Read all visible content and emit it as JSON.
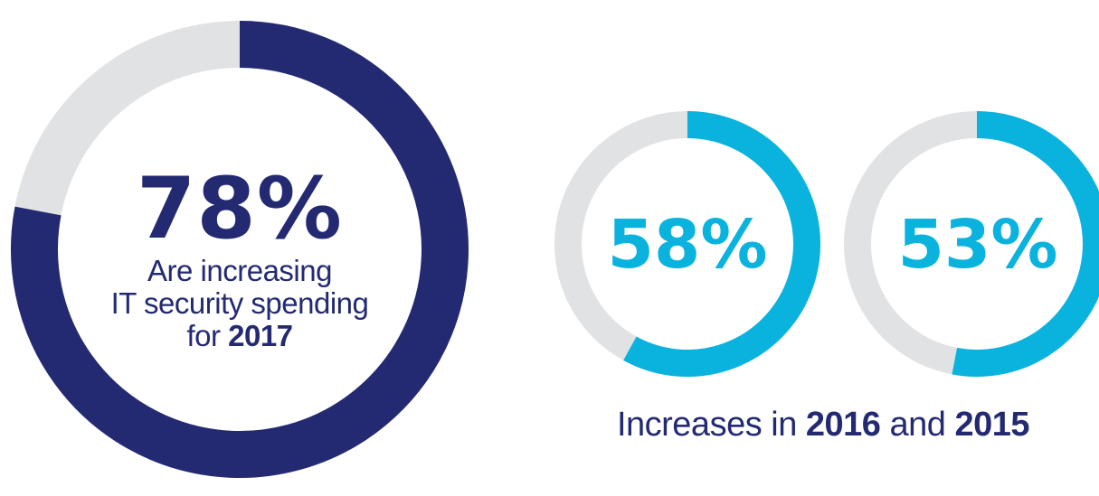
{
  "chart_data": [
    {
      "type": "pie",
      "variant": "donut",
      "value": 78,
      "value_label": "78%",
      "description_lines": [
        "Are increasing",
        "IT security spending"
      ],
      "description_for": "for",
      "year": "2017",
      "color": "#232a72",
      "track_color": "#e1e2e4"
    },
    {
      "type": "pie",
      "variant": "donut",
      "value": 58,
      "value_label": "58%",
      "year": "2016",
      "color": "#0ab3de",
      "track_color": "#e1e2e4"
    },
    {
      "type": "pie",
      "variant": "donut",
      "value": 53,
      "value_label": "53%",
      "year": "2015",
      "color": "#0ab3de",
      "track_color": "#e1e2e4"
    }
  ],
  "caption": {
    "prefix": "Increases in",
    "year_a": "2016",
    "conjunction": "and",
    "year_b": "2015"
  }
}
